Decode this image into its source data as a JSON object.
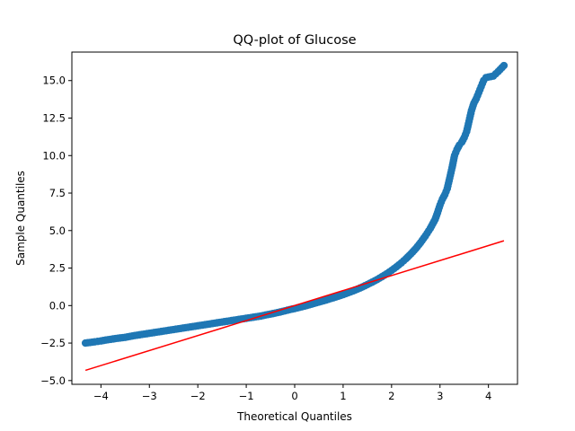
{
  "chart_data": {
    "type": "scatter",
    "title": "QQ-plot of Glucose",
    "xlabel": "Theoretical Quantiles",
    "ylabel": "Sample Quantiles",
    "xlim": [
      -4.6,
      4.6
    ],
    "ylim": [
      -5.25,
      16.9
    ],
    "x_ticks": [
      -4,
      -3,
      -2,
      -1,
      0,
      1,
      2,
      3,
      4
    ],
    "x_tick_labels": [
      "−4",
      "−3",
      "−2",
      "−1",
      "0",
      "1",
      "2",
      "3",
      "4"
    ],
    "y_ticks": [
      -5.0,
      -2.5,
      0.0,
      2.5,
      5.0,
      7.5,
      10.0,
      12.5,
      15.0
    ],
    "y_tick_labels": [
      "−5.0",
      "−2.5",
      "0.0",
      "2.5",
      "5.0",
      "7.5",
      "10.0",
      "12.5",
      "15.0"
    ],
    "grid": false,
    "series": [
      {
        "kind": "points",
        "color": "#1f77b4",
        "points": [
          [
            -4.32,
            -2.5
          ],
          [
            -4.13,
            -2.42
          ],
          [
            -4.0,
            -2.36
          ],
          [
            -3.9,
            -2.3
          ],
          [
            -3.8,
            -2.25
          ],
          [
            -3.7,
            -2.2
          ],
          [
            -3.6,
            -2.16
          ],
          [
            -3.5,
            -2.12
          ],
          [
            -3.4,
            -2.06
          ],
          [
            -3.3,
            -2.0
          ],
          [
            -3.2,
            -1.95
          ],
          [
            -3.1,
            -1.9
          ],
          [
            -3.0,
            -1.85
          ],
          [
            -2.9,
            -1.8
          ],
          [
            -2.8,
            -1.75
          ],
          [
            -2.7,
            -1.7
          ],
          [
            -2.6,
            -1.65
          ],
          [
            -2.5,
            -1.6
          ],
          [
            -2.4,
            -1.55
          ],
          [
            -2.3,
            -1.5
          ],
          [
            -2.2,
            -1.45
          ],
          [
            -2.1,
            -1.4
          ],
          [
            -2.0,
            -1.35
          ],
          [
            -1.9,
            -1.3
          ],
          [
            -1.8,
            -1.25
          ],
          [
            -1.7,
            -1.2
          ],
          [
            -1.6,
            -1.15
          ],
          [
            -1.5,
            -1.1
          ],
          [
            -1.4,
            -1.05
          ],
          [
            -1.3,
            -1.0
          ],
          [
            -1.2,
            -0.95
          ],
          [
            -1.1,
            -0.9
          ],
          [
            -1.0,
            -0.85
          ],
          [
            -0.9,
            -0.8
          ],
          [
            -0.8,
            -0.75
          ],
          [
            -0.7,
            -0.7
          ],
          [
            -0.6,
            -0.63
          ],
          [
            -0.5,
            -0.57
          ],
          [
            -0.4,
            -0.5
          ],
          [
            -0.3,
            -0.43
          ],
          [
            -0.2,
            -0.35
          ],
          [
            -0.1,
            -0.27
          ],
          [
            0.0,
            -0.2
          ],
          [
            0.1,
            -0.12
          ],
          [
            0.2,
            -0.04
          ],
          [
            0.3,
            0.05
          ],
          [
            0.4,
            0.14
          ],
          [
            0.5,
            0.23
          ],
          [
            0.6,
            0.32
          ],
          [
            0.7,
            0.42
          ],
          [
            0.8,
            0.52
          ],
          [
            0.9,
            0.62
          ],
          [
            1.0,
            0.73
          ],
          [
            1.1,
            0.85
          ],
          [
            1.2,
            0.97
          ],
          [
            1.3,
            1.1
          ],
          [
            1.4,
            1.24
          ],
          [
            1.5,
            1.4
          ],
          [
            1.6,
            1.56
          ],
          [
            1.7,
            1.73
          ],
          [
            1.8,
            1.92
          ],
          [
            1.9,
            2.12
          ],
          [
            2.0,
            2.34
          ],
          [
            2.1,
            2.58
          ],
          [
            2.2,
            2.84
          ],
          [
            2.3,
            3.13
          ],
          [
            2.4,
            3.45
          ],
          [
            2.5,
            3.8
          ],
          [
            2.6,
            4.2
          ],
          [
            2.7,
            4.65
          ],
          [
            2.8,
            5.15
          ],
          [
            2.9,
            5.75
          ],
          [
            2.95,
            6.2
          ],
          [
            3.0,
            6.7
          ],
          [
            3.05,
            7.1
          ],
          [
            3.1,
            7.4
          ],
          [
            3.15,
            7.8
          ],
          [
            3.2,
            8.5
          ],
          [
            3.25,
            9.2
          ],
          [
            3.3,
            10.0
          ],
          [
            3.35,
            10.4
          ],
          [
            3.4,
            10.7
          ],
          [
            3.45,
            10.9
          ],
          [
            3.5,
            11.2
          ],
          [
            3.55,
            11.6
          ],
          [
            3.6,
            12.3
          ],
          [
            3.65,
            13.0
          ],
          [
            3.7,
            13.5
          ],
          [
            3.75,
            13.8
          ],
          [
            3.8,
            14.2
          ],
          [
            3.85,
            14.6
          ],
          [
            3.9,
            15.0
          ],
          [
            3.95,
            15.2
          ],
          [
            4.1,
            15.3
          ],
          [
            4.2,
            15.6
          ],
          [
            4.32,
            16.0
          ]
        ]
      },
      {
        "kind": "line",
        "color": "#ff0000",
        "x": [
          -4.32,
          4.32
        ],
        "y": [
          -4.32,
          4.32
        ]
      }
    ]
  }
}
